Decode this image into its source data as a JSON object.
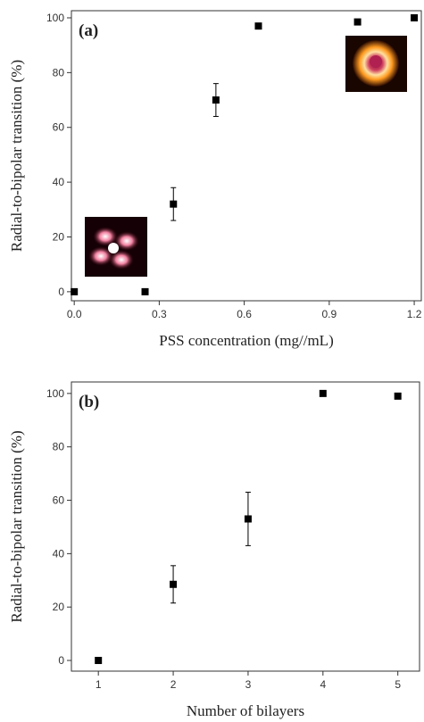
{
  "chart_data": [
    {
      "type": "scatter",
      "label": "(a)",
      "xlabel": "PSS concentration (mg//mL)",
      "ylabel": "Radial-to-bipolar transition (%)",
      "x": [
        0,
        0.25,
        0.35,
        0.5,
        0.65,
        1.0,
        1.2
      ],
      "values": [
        0,
        0,
        32,
        70,
        97,
        98.5,
        100
      ],
      "errors": [
        null,
        null,
        6,
        6,
        null,
        null,
        null
      ],
      "color": "#000000",
      "xlim": [
        -0.01,
        1.225
      ],
      "ylim": [
        -3.3,
        102.6
      ],
      "xticks": [
        {
          "value": 0,
          "label": "0.0"
        },
        0.3,
        0.6,
        0.9,
        1.2
      ],
      "yticks": [
        0,
        20,
        40,
        60,
        80,
        100
      ]
    },
    {
      "type": "scatter",
      "label": "(b)",
      "xlabel": "Number of bilayers",
      "ylabel": "Radial-to-bipolar transition (%)",
      "x": [
        1,
        2,
        3,
        4,
        5
      ],
      "values": [
        0,
        28.5,
        53,
        100,
        99
      ],
      "errors": [
        null,
        7,
        10,
        null,
        null
      ],
      "color": "#000000",
      "xlim": [
        0.64,
        5.29
      ],
      "ylim": [
        -4,
        104.3
      ],
      "xticks": [
        1,
        2,
        3,
        4,
        5
      ],
      "yticks": [
        0,
        20,
        40,
        60,
        80,
        100
      ]
    }
  ]
}
